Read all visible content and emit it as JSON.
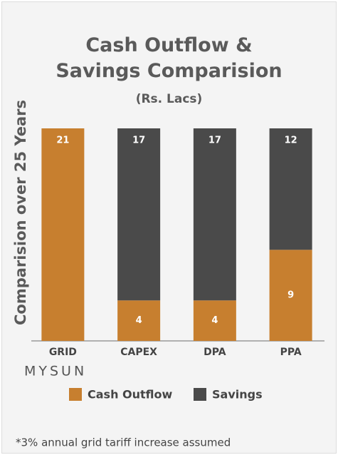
{
  "chart_data": {
    "type": "stacked_bar",
    "title": "Cash Outflow & Savings Comparision",
    "title_unit": "(Rs. Lacs)",
    "ylabel": "Comparision over 25 Years",
    "categories": [
      "GRID",
      "CAPEX",
      "DPA",
      "PPA"
    ],
    "series": [
      {
        "name": "Cash Outflow",
        "color": "#c77f2f",
        "values": [
          21,
          4,
          4,
          9
        ]
      },
      {
        "name": "Savings",
        "color": "#4a4a4a",
        "values": [
          null,
          17,
          17,
          12
        ]
      }
    ],
    "ylim": [
      0,
      21
    ],
    "logo": "MYSUN",
    "footnote": "*3% annual grid tariff increase assumed"
  }
}
